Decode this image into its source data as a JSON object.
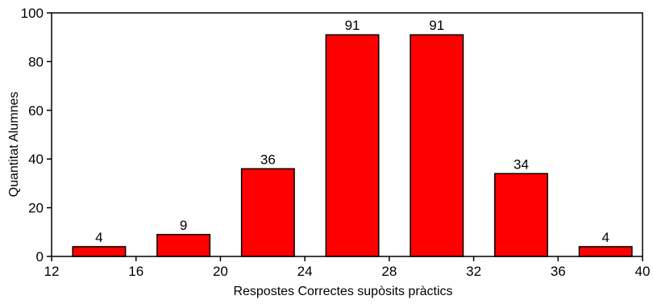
{
  "chart_data": {
    "type": "bar",
    "xlabel": "Respostes Correctes supòsits pràctics",
    "ylabel": "Quantitat Alumnes",
    "xlim": [
      12,
      40
    ],
    "ylim": [
      0,
      100
    ],
    "x_ticks": [
      12,
      16,
      20,
      24,
      28,
      32,
      36,
      40
    ],
    "y_ticks": [
      0,
      20,
      40,
      60,
      80,
      100
    ],
    "bins": [
      {
        "start": 13,
        "end": 15.5,
        "value": 4
      },
      {
        "start": 17,
        "end": 19.5,
        "value": 9
      },
      {
        "start": 21,
        "end": 23.5,
        "value": 36
      },
      {
        "start": 25,
        "end": 27.5,
        "value": 91
      },
      {
        "start": 29,
        "end": 31.5,
        "value": 91
      },
      {
        "start": 33,
        "end": 35.5,
        "value": 34
      },
      {
        "start": 37,
        "end": 39.5,
        "value": 4
      }
    ],
    "bar_color": "#ff0000",
    "grid": false,
    "legend": "none"
  }
}
